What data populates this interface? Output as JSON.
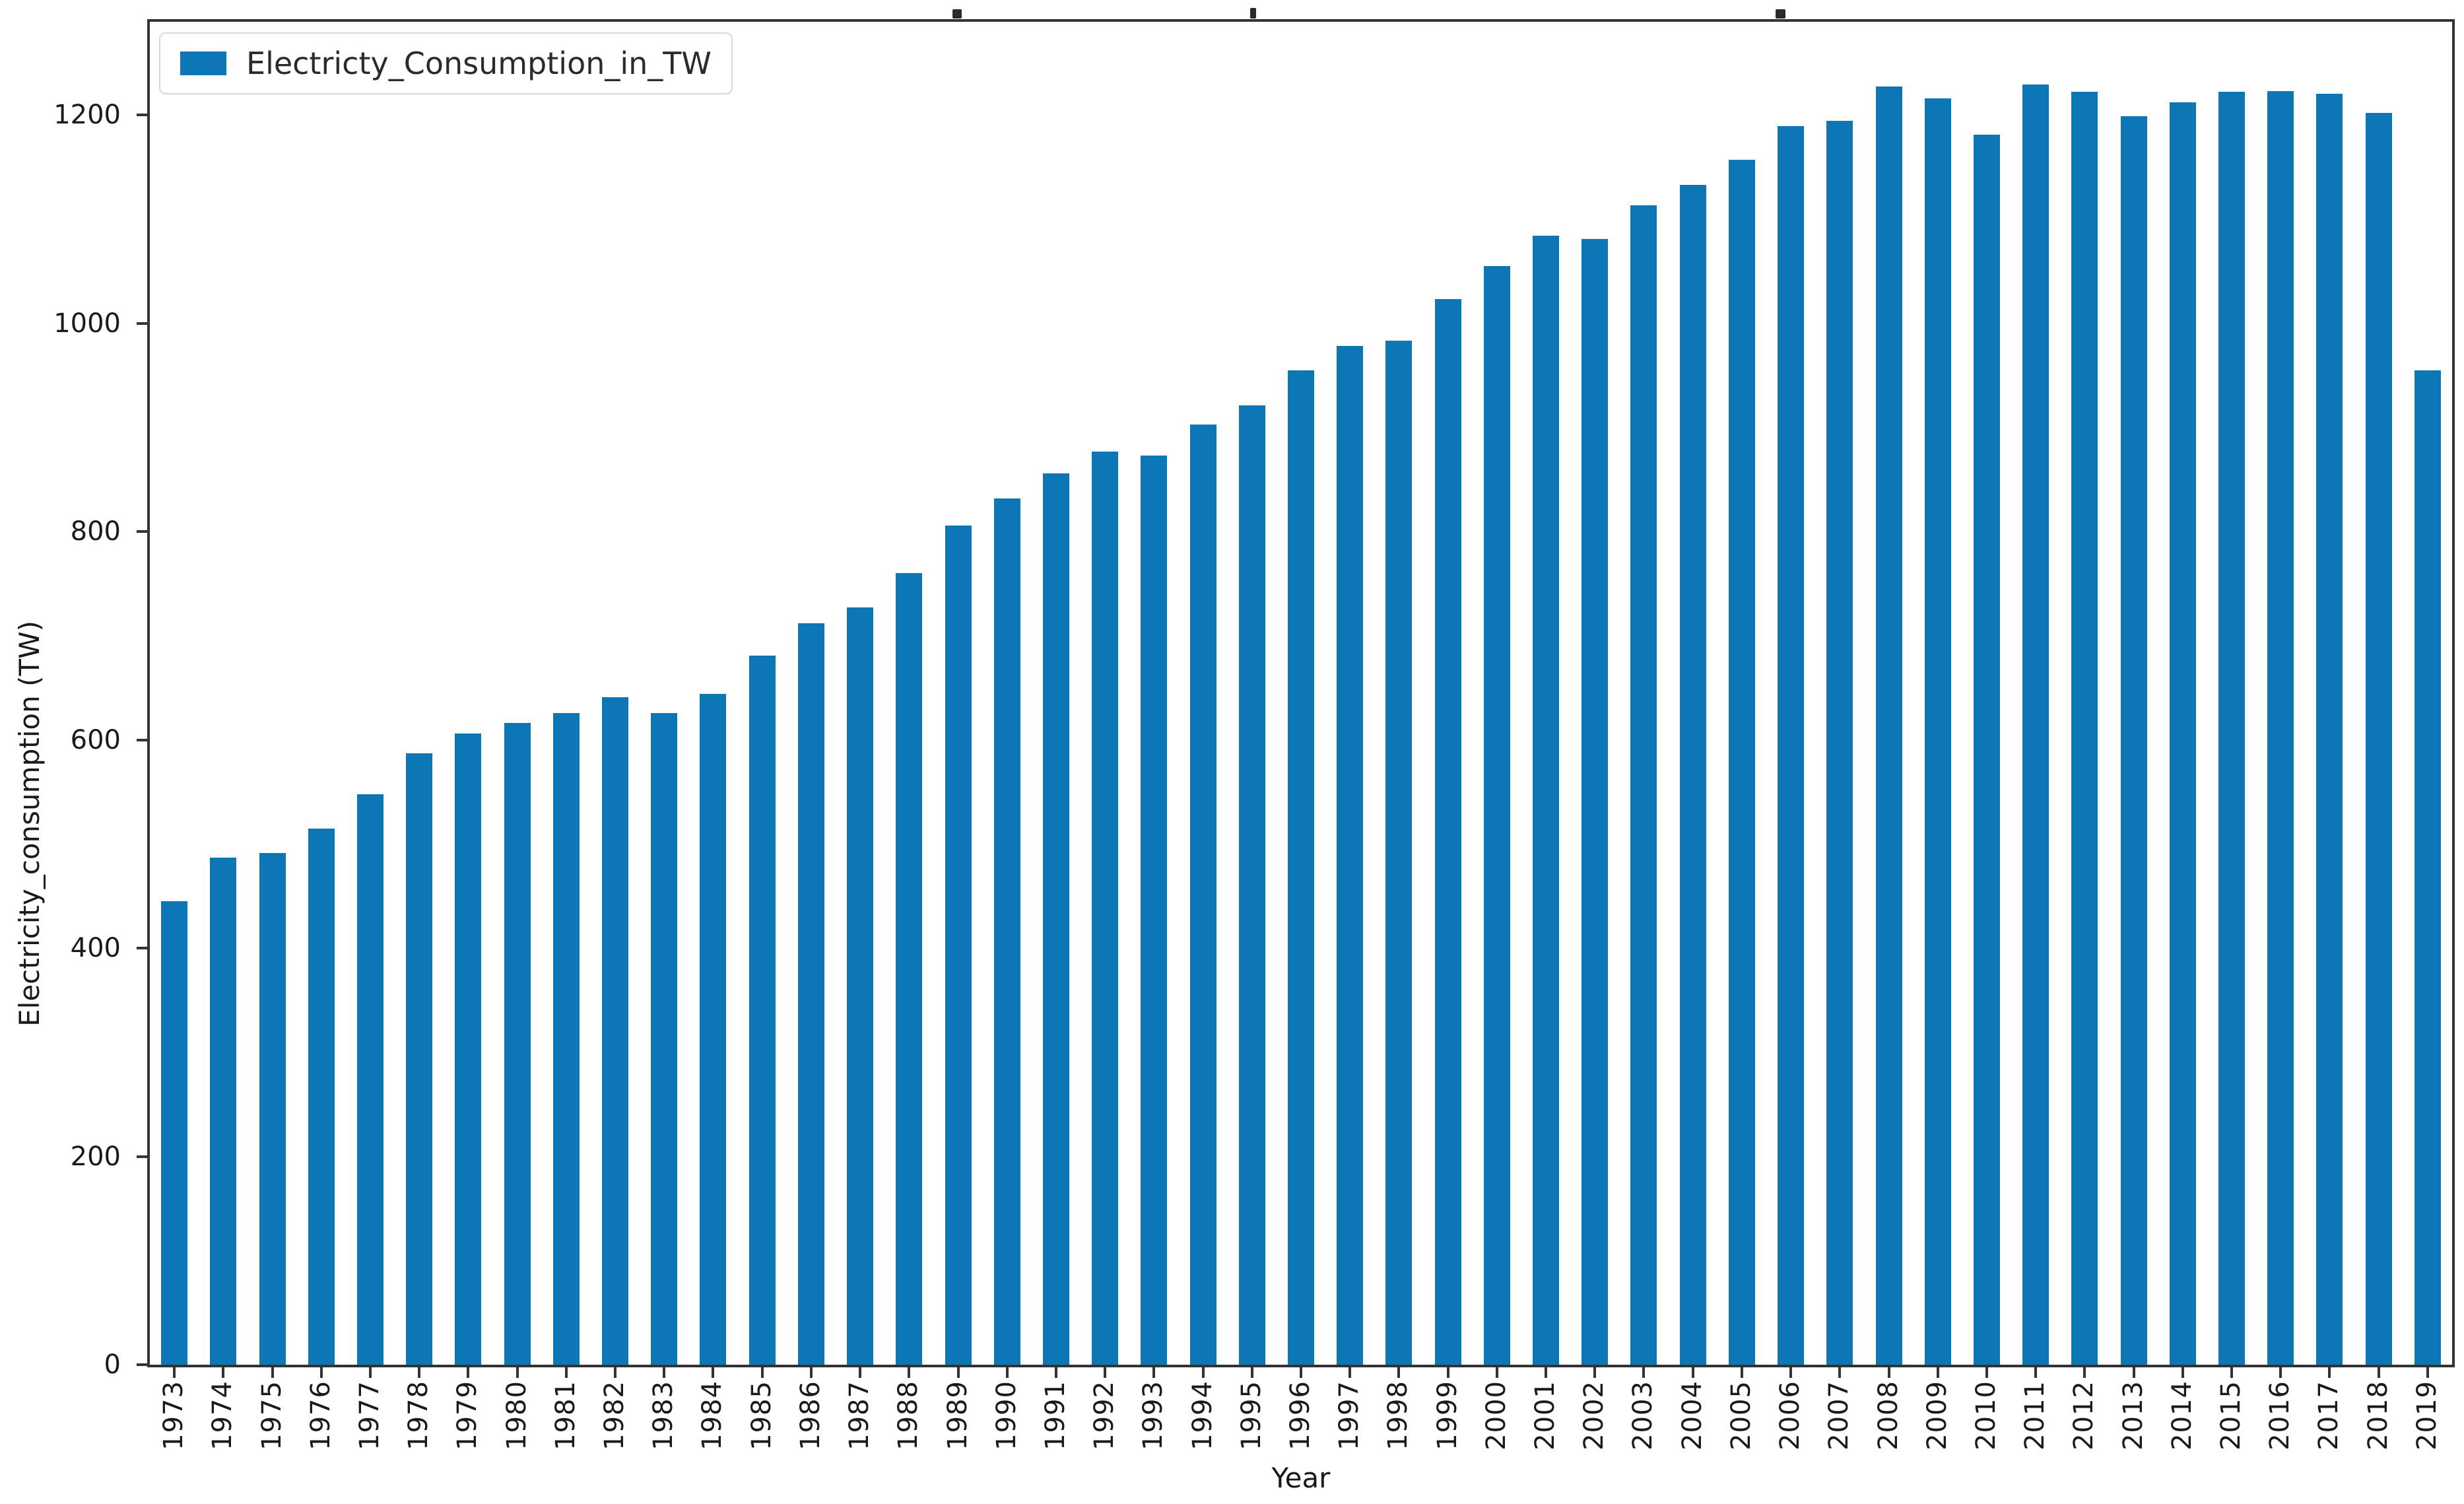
{
  "chart_data": {
    "type": "bar",
    "categories": [
      "1973",
      "1974",
      "1975",
      "1976",
      "1977",
      "1978",
      "1979",
      "1980",
      "1981",
      "1982",
      "1983",
      "1984",
      "1985",
      "1986",
      "1987",
      "1988",
      "1989",
      "1990",
      "1991",
      "1992",
      "1993",
      "1994",
      "1995",
      "1996",
      "1997",
      "1998",
      "1999",
      "2000",
      "2001",
      "2002",
      "2003",
      "2004",
      "2005",
      "2006",
      "2007",
      "2008",
      "2009",
      "2010",
      "2011",
      "2012",
      "2013",
      "2014",
      "2015",
      "2016",
      "2017",
      "2018",
      "2019"
    ],
    "values": [
      445,
      487,
      491,
      515,
      548,
      587,
      606,
      616,
      626,
      641,
      626,
      644,
      681,
      712,
      727,
      760,
      806,
      832,
      856,
      877,
      873,
      903,
      921,
      955,
      978,
      983,
      1023,
      1055,
      1084,
      1081,
      1113,
      1133,
      1157,
      1189,
      1194,
      1227,
      1216,
      1181,
      1229,
      1222,
      1199,
      1212,
      1222,
      1223,
      1220,
      1202,
      955
    ],
    "series_name": "Electricty_Consumption_in_TW",
    "title": "",
    "xlabel": "Year",
    "ylabel": "Electricity_consumption (TW)",
    "yticks": [
      0,
      200,
      400,
      600,
      800,
      1000,
      1200
    ],
    "ylim": [
      0,
      1290
    ],
    "grid": "off",
    "legend_position": "upper-left",
    "bar_color": "#0d76b4",
    "spine_color": "#333333"
  },
  "legend": {
    "label": "Electricty_Consumption_in_TW"
  },
  "axes": {
    "xlabel": "Year",
    "ylabel": "Electricity_consumption (TW)"
  }
}
